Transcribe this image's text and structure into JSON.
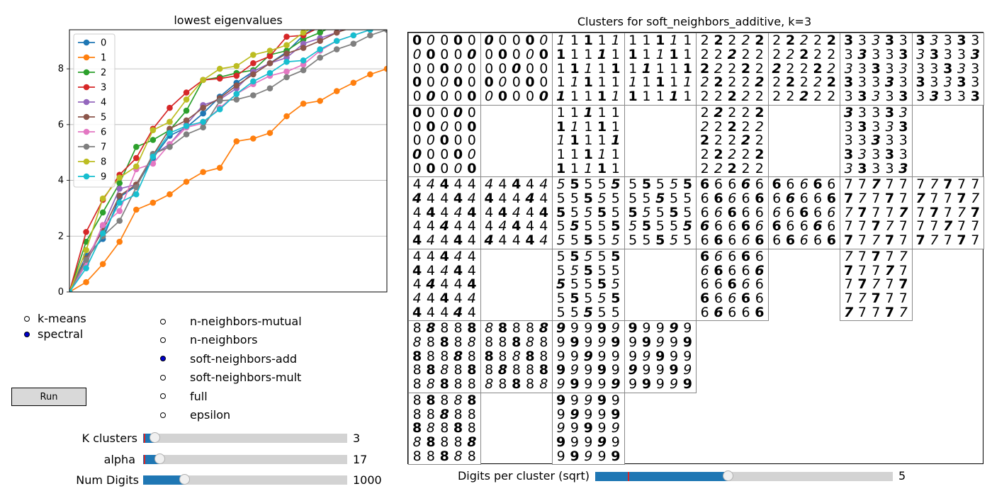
{
  "chart_data": {
    "type": "line",
    "title": "lowest eigenvalues",
    "xlabel": "",
    "ylabel": "",
    "x": [
      0,
      1,
      2,
      3,
      4,
      5,
      6,
      7,
      8,
      9,
      10,
      11,
      12,
      13,
      14,
      15,
      16,
      17,
      18,
      19
    ],
    "ylim": [
      0,
      9.4
    ],
    "yticks": [
      0,
      2,
      4,
      6,
      8
    ],
    "grid": "horizontal",
    "legend_position": "top-left",
    "series": [
      {
        "name": "0",
        "color": "#1f77b4",
        "values": [
          0,
          1.3,
          1.9,
          3.4,
          3.8,
          4.8,
          5.6,
          5.9,
          6.4,
          7.0,
          7.5,
          7.9,
          8.2,
          8.6,
          9.2,
          9.6,
          9.8,
          9.9,
          10,
          10.1
        ]
      },
      {
        "name": "1",
        "color": "#ff7f0e",
        "values": [
          0,
          0.35,
          1.0,
          1.8,
          2.95,
          3.2,
          3.5,
          3.95,
          4.3,
          4.45,
          5.4,
          5.5,
          5.7,
          6.3,
          6.75,
          6.85,
          7.2,
          7.5,
          7.8,
          8.0
        ]
      },
      {
        "name": "2",
        "color": "#2ca02c",
        "values": [
          0,
          1.8,
          2.85,
          3.9,
          5.2,
          5.45,
          5.8,
          6.5,
          7.6,
          7.7,
          7.85,
          7.95,
          8.5,
          8.65,
          9.05,
          9.3,
          9.6,
          9.8,
          10,
          10.2
        ]
      },
      {
        "name": "3",
        "color": "#d62728",
        "values": [
          0,
          2.15,
          3.3,
          4.2,
          4.8,
          5.85,
          6.6,
          7.15,
          7.6,
          7.65,
          7.75,
          8.2,
          8.45,
          9.15,
          9.2,
          9.5,
          9.7,
          9.9,
          10,
          10.1
        ]
      },
      {
        "name": "4",
        "color": "#9467bd",
        "values": [
          0,
          1.0,
          2.35,
          3.7,
          3.85,
          4.9,
          5.3,
          6.0,
          6.7,
          6.9,
          7.3,
          7.9,
          8.2,
          8.4,
          8.9,
          9.1,
          9.3,
          9.6,
          9.8,
          9.9
        ]
      },
      {
        "name": "5",
        "color": "#8c564b",
        "values": [
          0,
          1.2,
          2.2,
          3.45,
          3.85,
          4.9,
          5.85,
          6.15,
          6.6,
          6.95,
          7.4,
          7.8,
          8.2,
          8.55,
          8.75,
          9.0,
          9.3,
          9.5,
          9.7,
          9.9
        ]
      },
      {
        "name": "6",
        "color": "#e377c2",
        "values": [
          0,
          1.05,
          2.4,
          2.9,
          4.4,
          4.6,
          5.3,
          5.9,
          6.05,
          6.6,
          7.1,
          7.45,
          7.75,
          7.9,
          8.15,
          8.65,
          9.0,
          9.2,
          9.4,
          9.6
        ]
      },
      {
        "name": "7",
        "color": "#7f7f7f",
        "values": [
          0,
          1.15,
          2.0,
          2.55,
          3.75,
          4.95,
          5.2,
          5.65,
          5.9,
          6.85,
          6.9,
          7.05,
          7.3,
          7.7,
          7.95,
          8.4,
          8.7,
          8.9,
          9.2,
          9.4
        ]
      },
      {
        "name": "8",
        "color": "#bcbd22",
        "values": [
          0,
          1.5,
          3.35,
          4.1,
          4.5,
          5.8,
          6.1,
          6.9,
          7.6,
          8.0,
          8.1,
          8.5,
          8.65,
          8.85,
          9.3,
          9.6,
          9.8,
          10,
          10.2,
          10.3
        ]
      },
      {
        "name": "9",
        "color": "#17becf",
        "values": [
          0,
          0.85,
          2.1,
          3.2,
          3.5,
          4.85,
          5.7,
          5.95,
          6.1,
          6.55,
          7.1,
          7.55,
          7.85,
          8.25,
          8.3,
          8.7,
          9.0,
          9.2,
          9.4,
          9.6
        ]
      }
    ]
  },
  "modes": {
    "options": [
      {
        "label": "k-means",
        "selected": false
      },
      {
        "label": "spectral",
        "selected": true
      }
    ]
  },
  "affinities": {
    "options": [
      {
        "label": "n-neighbors-mutual",
        "selected": false
      },
      {
        "label": "n-neighbors",
        "selected": false
      },
      {
        "label": "soft-neighbors-add",
        "selected": true
      },
      {
        "label": "soft-neighbors-mult",
        "selected": false
      },
      {
        "label": "full",
        "selected": false
      },
      {
        "label": "epsilon",
        "selected": false
      }
    ]
  },
  "run_button": {
    "label": "Run"
  },
  "sliders": {
    "k_clusters": {
      "label": "K clusters",
      "value": "3",
      "fraction": 0.055
    },
    "alpha": {
      "label": "alpha",
      "value": "17",
      "fraction": 0.08
    },
    "num_digits": {
      "label": "Num Digits",
      "value": "1000",
      "fraction": 0.2
    },
    "digits_per_cluster": {
      "label": "Digits per cluster (sqrt)",
      "value": "5",
      "fraction": 0.445
    }
  },
  "clusters": {
    "title": "Clusters for soft_neighbors_additive, k=3",
    "groups": [
      {
        "digit": "0",
        "counts": [
          25,
          25,
          25
        ]
      },
      {
        "digit": "1",
        "counts": [
          25,
          25,
          25
        ]
      },
      {
        "digit": "2",
        "counts": [
          25,
          25,
          25
        ]
      },
      {
        "digit": "3",
        "counts": [
          25,
          25,
          25
        ]
      },
      {
        "digit": "4",
        "counts": [
          25,
          25,
          25
        ]
      },
      {
        "digit": "5",
        "counts": [
          25,
          25,
          25
        ]
      },
      {
        "digit": "6",
        "counts": [
          25,
          25,
          25
        ]
      },
      {
        "digit": "7",
        "counts": [
          25,
          25,
          25
        ]
      },
      {
        "digit": "8",
        "counts": [
          25,
          25,
          25
        ]
      },
      {
        "digit": "9",
        "counts": [
          25,
          25,
          25
        ]
      }
    ]
  }
}
